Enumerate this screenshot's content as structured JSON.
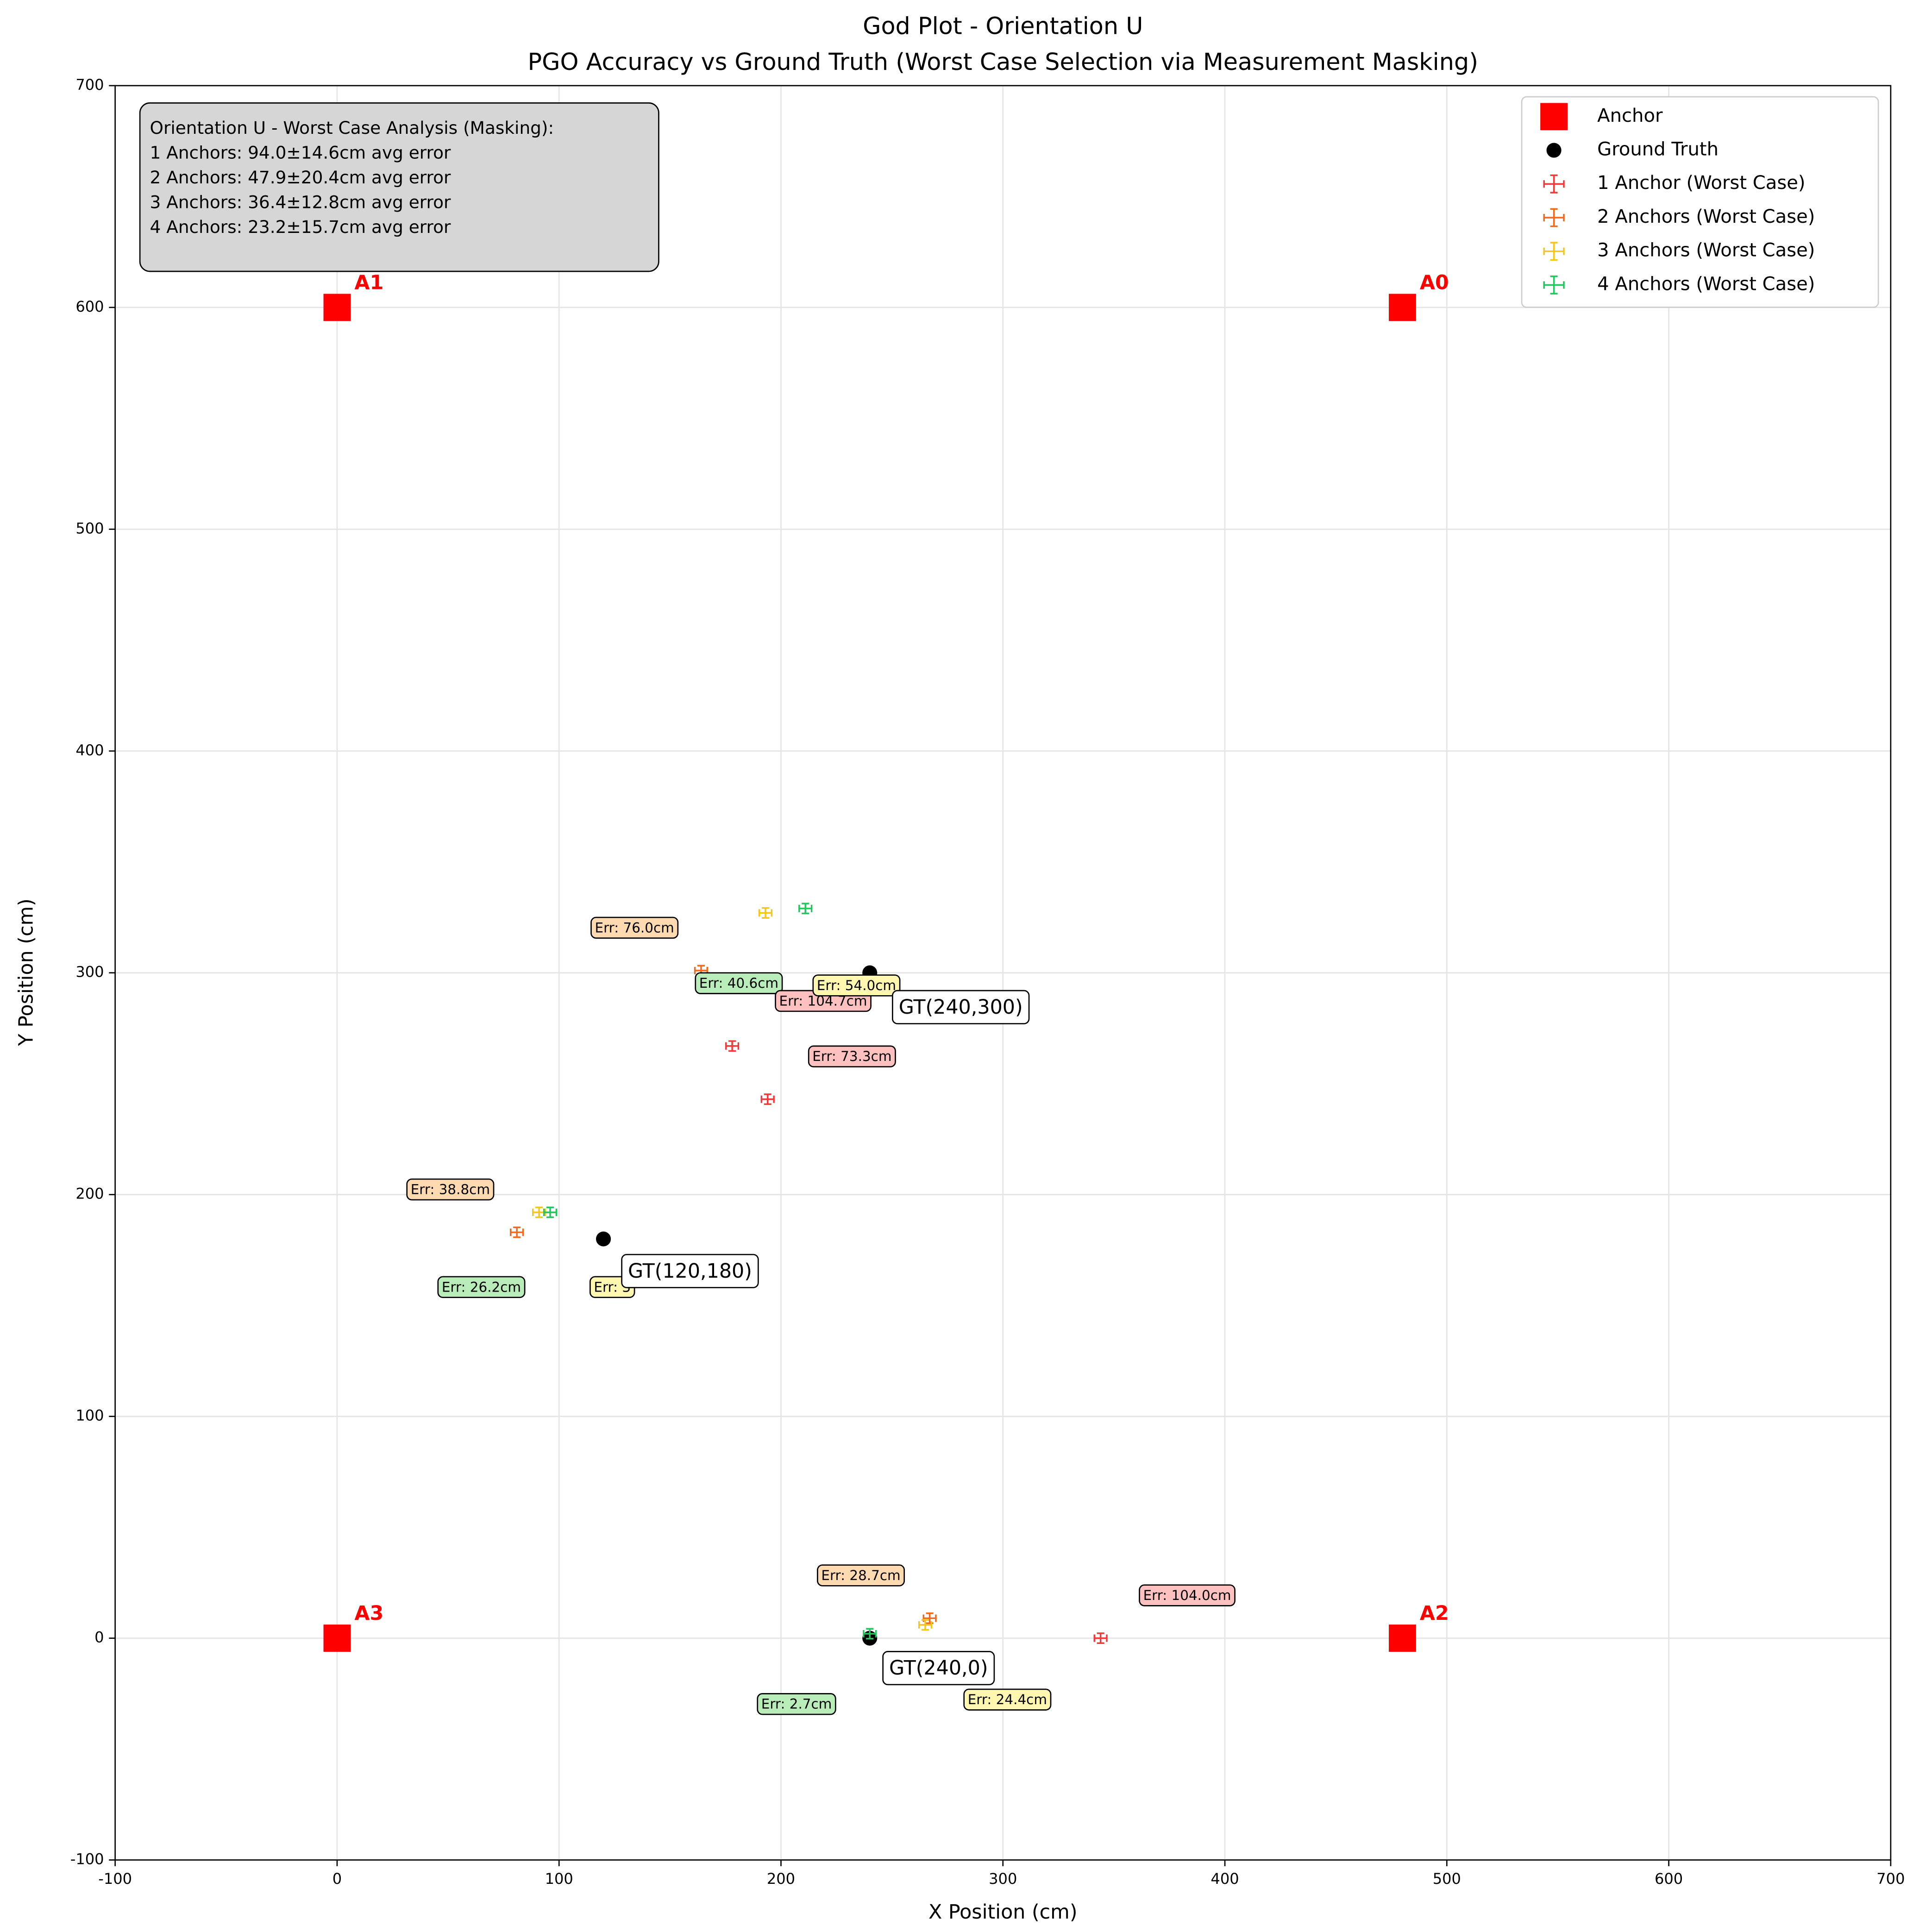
{
  "chart_data": {
    "type": "scatter",
    "title": "God Plot - Orientation U",
    "subtitle": "PGO Accuracy vs Ground Truth (Worst Case Selection via Measurement Masking)",
    "xlabel": "X Position (cm)",
    "ylabel": "Y Position (cm)",
    "xlim": [
      -100,
      700
    ],
    "ylim": [
      -100,
      700
    ],
    "xticks": [
      -100,
      0,
      100,
      200,
      300,
      400,
      500,
      600,
      700
    ],
    "yticks": [
      -100,
      0,
      100,
      200,
      300,
      400,
      500,
      600,
      700
    ],
    "grid": true,
    "legend": "upper right",
    "series": [
      {
        "name": "Anchor",
        "marker": "square",
        "color": "#ff0000",
        "x": [
          480,
          0,
          480,
          0
        ],
        "y": [
          600,
          600,
          0,
          0
        ],
        "labels": [
          "A0",
          "A1",
          "A2",
          "A3"
        ]
      },
      {
        "name": "Ground Truth",
        "marker": "circle",
        "color": "#000000",
        "x": [
          240,
          120,
          240
        ],
        "y": [
          300,
          180,
          0
        ]
      },
      {
        "name": "1 Anchor (Worst Case)",
        "marker": "errorbar",
        "color": "#f03a3a",
        "x": [
          178,
          194,
          344
        ],
        "y": [
          267,
          243,
          0
        ]
      },
      {
        "name": "2 Anchors (Worst Case)",
        "marker": "errorbar",
        "color": "#ee6a1c",
        "x": [
          164,
          81,
          267
        ],
        "y": [
          301,
          183,
          9
        ]
      },
      {
        "name": "3 Anchors (Worst Case)",
        "marker": "errorbar",
        "color": "#f5c518",
        "x": [
          193,
          91,
          265
        ],
        "y": [
          327,
          192,
          6
        ]
      },
      {
        "name": "4 Anchors (Worst Case)",
        "marker": "errorbar",
        "color": "#22c55e",
        "x": [
          211,
          96,
          240
        ],
        "y": [
          329,
          192,
          2
        ]
      }
    ],
    "annotations": [
      {
        "text": "Err: 76.0cm",
        "x": 134,
        "y": 320,
        "color": "#ffd9b0"
      },
      {
        "text": "Err: 40.6cm",
        "x": 181,
        "y": 295,
        "color": "#b8ecb8"
      },
      {
        "text": "Err: 104.7cm",
        "x": 219,
        "y": 287,
        "color": "#ffc0c0"
      },
      {
        "text": "Err: 54.0cm",
        "x": 234,
        "y": 294,
        "color": "#fff6b0"
      },
      {
        "text": "Err: 73.3cm",
        "x": 232,
        "y": 262,
        "color": "#ffc0c0"
      },
      {
        "text": "Err: 38.8cm",
        "x": 51,
        "y": 202,
        "color": "#ffd9b0"
      },
      {
        "text": "Err: 26.2cm",
        "x": 65,
        "y": 158,
        "color": "#b8ecb8"
      },
      {
        "text": "Err: 3",
        "x": 124,
        "y": 158,
        "color": "#fff6b0"
      },
      {
        "text": "Err: 28.7cm",
        "x": 236,
        "y": 28,
        "color": "#ffd9b0"
      },
      {
        "text": "Err: 104.0cm",
        "x": 383,
        "y": 19,
        "color": "#ffc0c0"
      },
      {
        "text": "Err: 2.7cm",
        "x": 207,
        "y": -30,
        "color": "#b8ecb8"
      },
      {
        "text": "Err: 24.4cm",
        "x": 302,
        "y": -28,
        "color": "#fff6b0"
      },
      {
        "text": "GT(240,300)",
        "x": 281,
        "y": 284,
        "color": "#ffffff"
      },
      {
        "text": "GT(120,180)",
        "x": 159,
        "y": 165,
        "color": "#ffffff"
      },
      {
        "text": "GT(240,0)",
        "x": 271,
        "y": -14,
        "color": "#ffffff"
      }
    ],
    "info_box": [
      "Orientation U - Worst Case Analysis (Masking):",
      "1 Anchors: 94.0±14.6cm avg error",
      "2 Anchors: 47.9±20.4cm avg error",
      "3 Anchors: 36.4±12.8cm avg error",
      "4 Anchors: 23.2±15.7cm avg error"
    ]
  }
}
